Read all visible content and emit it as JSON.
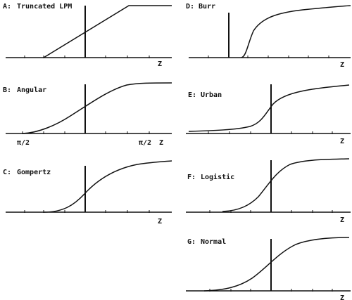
{
  "panels": [
    {
      "id": "A",
      "label": "A:",
      "name": "Truncated LPM",
      "curve": "truncated-lpm",
      "z_label": "Z",
      "left_tick_label": ""
    },
    {
      "id": "B",
      "label": "B:",
      "name": "Angular",
      "curve": "angular",
      "z_label": "Z",
      "left_tick_label": "π/2",
      "right_tick_label": "π/2"
    },
    {
      "id": "C",
      "label": "C:",
      "name": "Gompertz",
      "curve": "gompertz",
      "z_label": "Z",
      "left_tick_label": ""
    },
    {
      "id": "D",
      "label": "D:",
      "name": "Burr",
      "curve": "burr",
      "z_label": "Z",
      "left_tick_label": ""
    },
    {
      "id": "E",
      "label": "E:",
      "name": "Urban",
      "curve": "urban",
      "z_label": "Z",
      "left_tick_label": ""
    },
    {
      "id": "F",
      "label": "F:",
      "name": "Logistic",
      "curve": "logistic",
      "z_label": "Z",
      "left_tick_label": ""
    },
    {
      "id": "G",
      "label": "G:",
      "name": "Normal",
      "curve": "normal",
      "z_label": "Z",
      "left_tick_label": ""
    }
  ]
}
